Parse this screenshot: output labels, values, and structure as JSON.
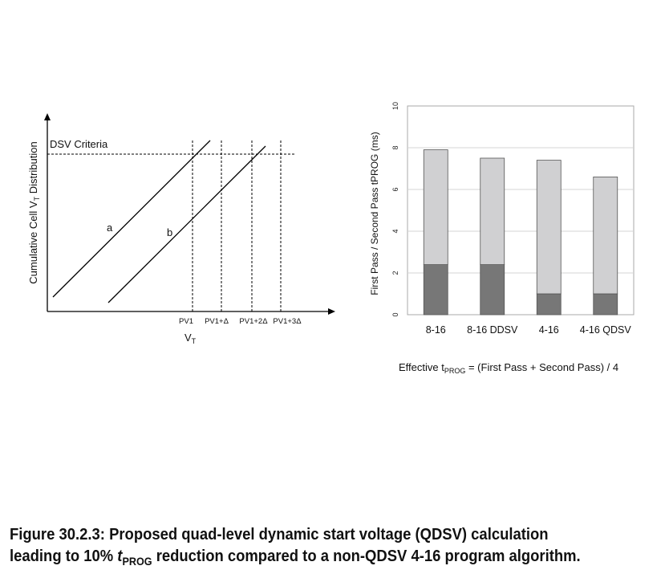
{
  "left_chart": {
    "type": "line",
    "ylabel_pre": "Cumulative Cell V",
    "ylabel_sub": "T",
    "ylabel_post": " Distribution",
    "xlabel": "V",
    "xlabel_sub": "T",
    "criteria_label": "DSV Criteria",
    "curve_labels": [
      "a",
      "b"
    ],
    "x_ticks": [
      "PV1",
      "PV1+Δ",
      "PV1+2Δ",
      "PV1+3Δ"
    ]
  },
  "chart_data": {
    "type": "bar",
    "categories": [
      "8-16",
      "8-16 DDSV",
      "4-16",
      "4-16 QDSV"
    ],
    "series": [
      {
        "key": "first",
        "values": [
          2.4,
          2.4,
          1.0,
          1.0
        ],
        "color": "#777777"
      },
      {
        "key": "second",
        "values": [
          5.5,
          5.1,
          6.4,
          5.6
        ],
        "color": "#d0d0d2"
      }
    ],
    "ylabel": "First Pass / Second Pass tPROG (ms)",
    "ylim": [
      0,
      10
    ],
    "yticks": [
      "0",
      "2",
      "4",
      "6",
      "8",
      "10"
    ],
    "grid": true
  },
  "note": {
    "pre": "Effective t",
    "sub": "PROG",
    "post": " = (First Pass + Second Pass) / 4"
  },
  "caption": {
    "line1": "Figure 30.2.3: Proposed quad-level dynamic start voltage (QDSV) calculation",
    "line2_pre": "leading to 10% ",
    "line2_t": "t",
    "line2_sub": "PROG",
    "line2_post": " reduction compared to a non-QDSV 4-16 program algorithm."
  }
}
